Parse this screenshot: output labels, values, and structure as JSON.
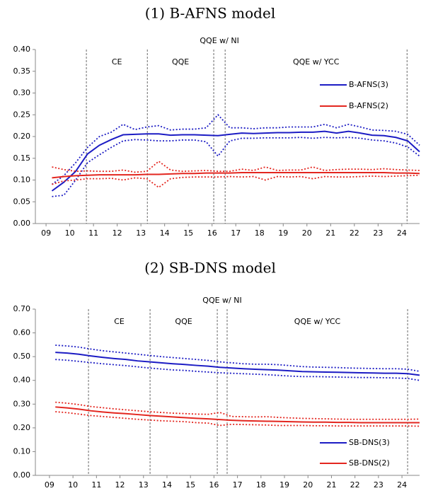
{
  "chart_data": [
    {
      "type": "line",
      "title": "(1) B-AFNS model",
      "x": [
        9.25,
        9.75,
        10.25,
        10.75,
        11.25,
        11.75,
        12.25,
        12.75,
        13.25,
        13.75,
        14.25,
        14.75,
        15.25,
        15.75,
        16.25,
        16.75,
        17.25,
        17.75,
        18.25,
        18.75,
        19.25,
        19.75,
        20.25,
        20.75,
        21.25,
        21.75,
        22.25,
        22.75,
        23.25,
        23.75,
        24.25,
        24.75
      ],
      "xlim": [
        8.55,
        24.75
      ],
      "xticks": [
        {
          "value": 9,
          "label": "09"
        },
        10,
        11,
        12,
        13,
        14,
        15,
        16,
        17,
        18,
        19,
        20,
        21,
        22,
        23,
        24
      ],
      "ylim": [
        0,
        0.4
      ],
      "yticks": [
        {
          "value": 0,
          "label": "0.00"
        },
        {
          "value": 0.05,
          "label": "0.05"
        },
        {
          "value": 0.1,
          "label": "0.10"
        },
        {
          "value": 0.15,
          "label": "0.15"
        },
        {
          "value": 0.2,
          "label": "0.20"
        },
        {
          "value": 0.25,
          "label": "0.25"
        },
        {
          "value": 0.3,
          "label": "0.30"
        },
        {
          "value": 0.35,
          "label": "0.35"
        },
        {
          "value": 0.4,
          "label": "0.40"
        }
      ],
      "vlines": [
        10.7,
        13.27,
        16.07,
        16.55,
        24.22
      ],
      "annotations": [
        "CE",
        "QQE",
        "QQE w/ NI",
        "QQE w/ YCC"
      ],
      "legend": "upper right",
      "series": [
        {
          "name": "B-AFNS(3)",
          "color": "#1c1cc4",
          "values": [
            0.075,
            0.095,
            0.12,
            0.16,
            0.18,
            0.193,
            0.204,
            0.205,
            0.206,
            0.206,
            0.203,
            0.204,
            0.204,
            0.203,
            0.202,
            0.205,
            0.208,
            0.207,
            0.208,
            0.209,
            0.209,
            0.21,
            0.21,
            0.212,
            0.208,
            0.212,
            0.208,
            0.203,
            0.202,
            0.198,
            0.19,
            0.165
          ],
          "upper": [
            0.09,
            0.11,
            0.14,
            0.175,
            0.2,
            0.21,
            0.228,
            0.216,
            0.222,
            0.225,
            0.215,
            0.217,
            0.217,
            0.22,
            0.25,
            0.22,
            0.22,
            0.218,
            0.22,
            0.22,
            0.222,
            0.222,
            0.222,
            0.228,
            0.22,
            0.228,
            0.222,
            0.215,
            0.214,
            0.212,
            0.205,
            0.18
          ],
          "lower": [
            0.062,
            0.065,
            0.1,
            0.14,
            0.158,
            0.175,
            0.19,
            0.193,
            0.192,
            0.19,
            0.19,
            0.192,
            0.192,
            0.188,
            0.155,
            0.19,
            0.196,
            0.196,
            0.197,
            0.197,
            0.197,
            0.198,
            0.196,
            0.198,
            0.197,
            0.198,
            0.196,
            0.192,
            0.19,
            0.185,
            0.176,
            0.155
          ]
        },
        {
          "name": "B-AFNS(2)",
          "color": "#e3261f",
          "values": [
            0.105,
            0.108,
            0.11,
            0.111,
            0.112,
            0.112,
            0.112,
            0.112,
            0.113,
            0.113,
            0.114,
            0.115,
            0.115,
            0.116,
            0.116,
            0.116,
            0.117,
            0.117,
            0.117,
            0.117,
            0.117,
            0.117,
            0.117,
            0.117,
            0.117,
            0.117,
            0.117,
            0.117,
            0.117,
            0.116,
            0.116,
            0.115
          ],
          "upper": [
            0.13,
            0.124,
            0.12,
            0.121,
            0.12,
            0.12,
            0.123,
            0.118,
            0.12,
            0.143,
            0.123,
            0.12,
            0.121,
            0.122,
            0.12,
            0.12,
            0.125,
            0.122,
            0.13,
            0.122,
            0.123,
            0.123,
            0.13,
            0.122,
            0.124,
            0.125,
            0.125,
            0.124,
            0.126,
            0.124,
            0.123,
            0.122
          ],
          "lower": [
            0.09,
            0.098,
            0.1,
            0.103,
            0.103,
            0.104,
            0.1,
            0.105,
            0.103,
            0.083,
            0.103,
            0.106,
            0.107,
            0.107,
            0.107,
            0.108,
            0.107,
            0.108,
            0.1,
            0.108,
            0.107,
            0.108,
            0.103,
            0.108,
            0.107,
            0.107,
            0.108,
            0.109,
            0.108,
            0.109,
            0.11,
            0.111
          ]
        }
      ]
    },
    {
      "type": "line",
      "title": "(2) SB-DNS model",
      "x": [
        9.25,
        9.75,
        10.25,
        10.75,
        11.25,
        11.75,
        12.25,
        12.75,
        13.25,
        13.75,
        14.25,
        14.75,
        15.25,
        15.75,
        16.25,
        16.75,
        17.25,
        17.75,
        18.25,
        18.75,
        19.25,
        19.75,
        20.25,
        20.75,
        21.25,
        21.75,
        22.25,
        22.75,
        23.25,
        23.75,
        24.25,
        24.75
      ],
      "xlim": [
        8.4,
        24.75
      ],
      "xticks": [
        {
          "value": 9,
          "label": "09"
        },
        10,
        11,
        12,
        13,
        14,
        15,
        16,
        17,
        18,
        19,
        20,
        21,
        22,
        23,
        24
      ],
      "ylim": [
        0,
        0.7
      ],
      "yticks": [
        {
          "value": 0,
          "label": "0.00"
        },
        {
          "value": 0.1,
          "label": "0.10"
        },
        {
          "value": 0.2,
          "label": "0.20"
        },
        {
          "value": 0.3,
          "label": "0.30"
        },
        {
          "value": 0.4,
          "label": "0.40"
        },
        {
          "value": 0.5,
          "label": "0.50"
        },
        {
          "value": 0.6,
          "label": "0.60"
        },
        {
          "value": 0.7,
          "label": "0.70"
        }
      ],
      "vlines": [
        10.66,
        13.28,
        16.14,
        16.56,
        24.24
      ],
      "annotations": [
        "CE",
        "QQE",
        "QQE w/ NI",
        "QQE w/ YCC"
      ],
      "legend": "lower right",
      "series": [
        {
          "name": "SB-DNS(3)",
          "color": "#1c1cc4",
          "values": [
            0.518,
            0.515,
            0.51,
            0.503,
            0.497,
            0.492,
            0.488,
            0.482,
            0.478,
            0.474,
            0.47,
            0.467,
            0.463,
            0.46,
            0.455,
            0.452,
            0.449,
            0.447,
            0.445,
            0.443,
            0.44,
            0.437,
            0.436,
            0.435,
            0.434,
            0.433,
            0.432,
            0.431,
            0.43,
            0.43,
            0.428,
            0.422
          ],
          "upper": [
            0.548,
            0.545,
            0.54,
            0.532,
            0.525,
            0.52,
            0.515,
            0.51,
            0.505,
            0.5,
            0.496,
            0.492,
            0.488,
            0.484,
            0.478,
            0.474,
            0.47,
            0.468,
            0.468,
            0.466,
            0.462,
            0.458,
            0.456,
            0.455,
            0.454,
            0.452,
            0.451,
            0.45,
            0.449,
            0.449,
            0.447,
            0.438
          ],
          "lower": [
            0.488,
            0.485,
            0.48,
            0.475,
            0.47,
            0.466,
            0.462,
            0.457,
            0.452,
            0.448,
            0.444,
            0.442,
            0.438,
            0.435,
            0.432,
            0.43,
            0.428,
            0.426,
            0.424,
            0.421,
            0.418,
            0.416,
            0.416,
            0.415,
            0.414,
            0.413,
            0.412,
            0.412,
            0.411,
            0.41,
            0.408,
            0.4
          ]
        },
        {
          "name": "SB-DNS(2)",
          "color": "#e3261f",
          "values": [
            0.288,
            0.284,
            0.279,
            0.272,
            0.267,
            0.263,
            0.26,
            0.256,
            0.252,
            0.249,
            0.246,
            0.243,
            0.24,
            0.238,
            0.235,
            0.232,
            0.23,
            0.229,
            0.228,
            0.227,
            0.226,
            0.225,
            0.224,
            0.224,
            0.223,
            0.223,
            0.222,
            0.222,
            0.222,
            0.222,
            0.222,
            0.222
          ],
          "upper": [
            0.308,
            0.304,
            0.298,
            0.29,
            0.285,
            0.28,
            0.276,
            0.272,
            0.268,
            0.265,
            0.262,
            0.26,
            0.258,
            0.257,
            0.265,
            0.248,
            0.247,
            0.246,
            0.247,
            0.244,
            0.242,
            0.24,
            0.239,
            0.238,
            0.237,
            0.236,
            0.236,
            0.236,
            0.236,
            0.236,
            0.236,
            0.237
          ],
          "lower": [
            0.268,
            0.264,
            0.258,
            0.252,
            0.248,
            0.244,
            0.24,
            0.236,
            0.233,
            0.23,
            0.228,
            0.226,
            0.222,
            0.22,
            0.21,
            0.215,
            0.214,
            0.213,
            0.212,
            0.21,
            0.21,
            0.21,
            0.209,
            0.209,
            0.208,
            0.208,
            0.208,
            0.208,
            0.208,
            0.208,
            0.208,
            0.207
          ]
        }
      ]
    }
  ]
}
